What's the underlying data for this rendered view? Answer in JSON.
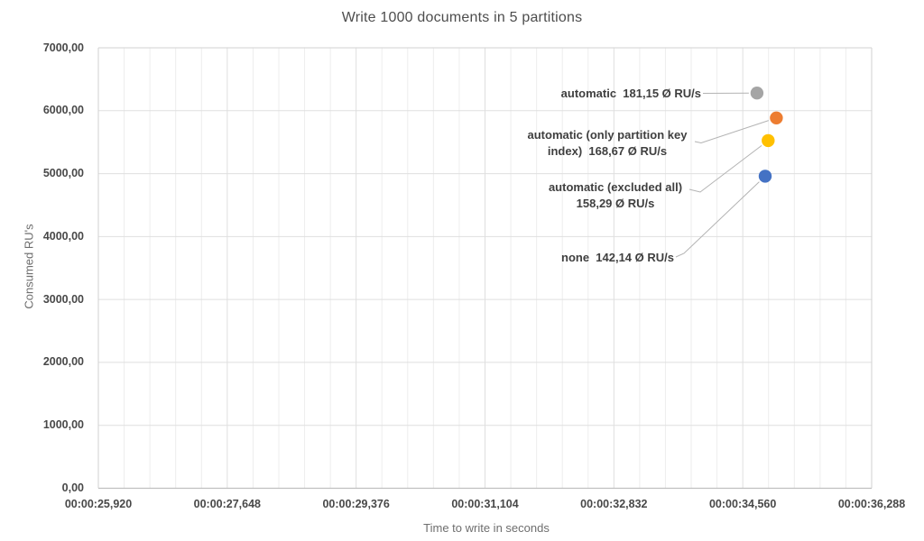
{
  "chart_data": {
    "type": "scatter",
    "title": "Write 1000 documents in 5 partitions",
    "xlabel": "Time to write in seconds",
    "ylabel": "Consumed RU's",
    "grid": true,
    "legend_position": "none",
    "x_axis": {
      "range_seconds": [
        25.92,
        36.288
      ],
      "minor_step_seconds": 0.3456,
      "major_every_n_minor": 5,
      "tick_labels": [
        "00:00:25,920",
        "00:00:27,648",
        "00:00:29,376",
        "00:00:31,104",
        "00:00:32,832",
        "00:00:34,560",
        "00:00:36,288"
      ],
      "tick_seconds": [
        25.92,
        27.648,
        29.376,
        31.104,
        32.832,
        34.56,
        36.288
      ]
    },
    "y_axis": {
      "range": [
        0,
        7000
      ],
      "tick_labels": [
        "0,00",
        "1000,00",
        "2000,00",
        "3000,00",
        "4000,00",
        "5000,00",
        "6000,00",
        "7000,00"
      ],
      "tick_values": [
        0,
        1000,
        2000,
        3000,
        4000,
        5000,
        6000,
        7000
      ]
    },
    "points": [
      {
        "id": "automatic",
        "series": "automatic",
        "avg_ru_per_s_label": "181,15",
        "time_s": 34.75,
        "consumed_rus": 6280,
        "color": "#a5a5a5",
        "label": "automatic  181,15 Ø RU/s"
      },
      {
        "id": "pk",
        "series": "automatic (only partition key index)",
        "avg_ru_per_s_label": "168,67",
        "time_s": 35.01,
        "consumed_rus": 5885,
        "color": "#ed7d31",
        "label": "automatic (only partition key\nindex)  168,67 Ø RU/s"
      },
      {
        "id": "excl",
        "series": "automatic (excluded all)",
        "avg_ru_per_s_label": "158,29",
        "time_s": 34.9,
        "consumed_rus": 5525,
        "color": "#ffc000",
        "label": "automatic (excluded all)\n158,29 Ø RU/s"
      },
      {
        "id": "none",
        "series": "none",
        "avg_ru_per_s_label": "142,14",
        "time_s": 34.86,
        "consumed_rus": 4960,
        "color": "#4472c4",
        "label": "none  142,14 Ø RU/s"
      }
    ],
    "colors": {
      "grid_minor": "#ededed",
      "grid_major": "#dfdfdf",
      "plot_border": "#d2d2d2",
      "axis_line": "#bfbfbf",
      "leader_line": "#b3b3b3"
    }
  }
}
